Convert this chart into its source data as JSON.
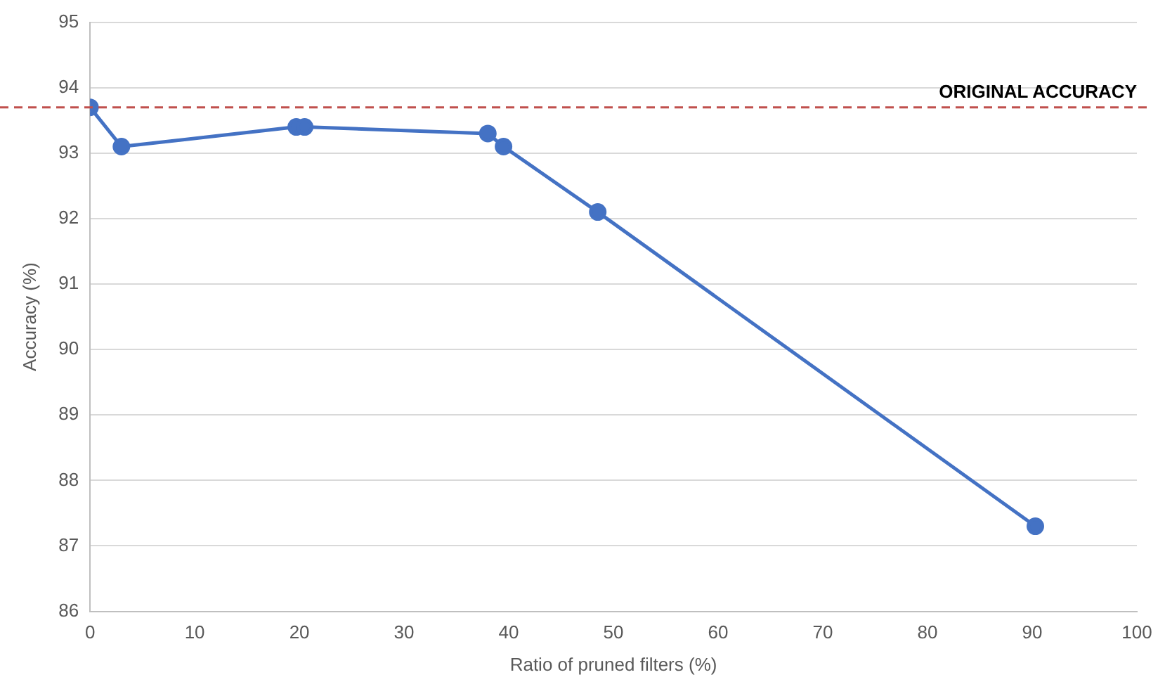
{
  "chart_data": {
    "type": "line",
    "xlabel": "Ratio of pruned filters (%)",
    "ylabel": "Accuracy (%)",
    "x": [
      0,
      3,
      19.7,
      20.5,
      38,
      39.5,
      48.5,
      90.3
    ],
    "series": [
      {
        "color": "#4472c4",
        "values": [
          93.7,
          93.1,
          93.4,
          93.4,
          93.3,
          93.1,
          92.1,
          87.3
        ]
      }
    ],
    "xlim": [
      0,
      100
    ],
    "xticks": [
      0,
      10,
      20,
      30,
      40,
      50,
      60,
      70,
      80,
      90,
      100
    ],
    "ylim": [
      86,
      95
    ],
    "yticks": [
      86,
      87,
      88,
      89,
      90,
      91,
      92,
      93,
      94,
      95
    ],
    "grid": "y",
    "legend": false,
    "marker": "circle",
    "line_style": "solid",
    "ref_lines": [
      {
        "axis": "y",
        "value": 93.7,
        "label": "ORIGINAL ACCURACY",
        "color": "#c0504d",
        "line_style": "dashed"
      }
    ]
  }
}
